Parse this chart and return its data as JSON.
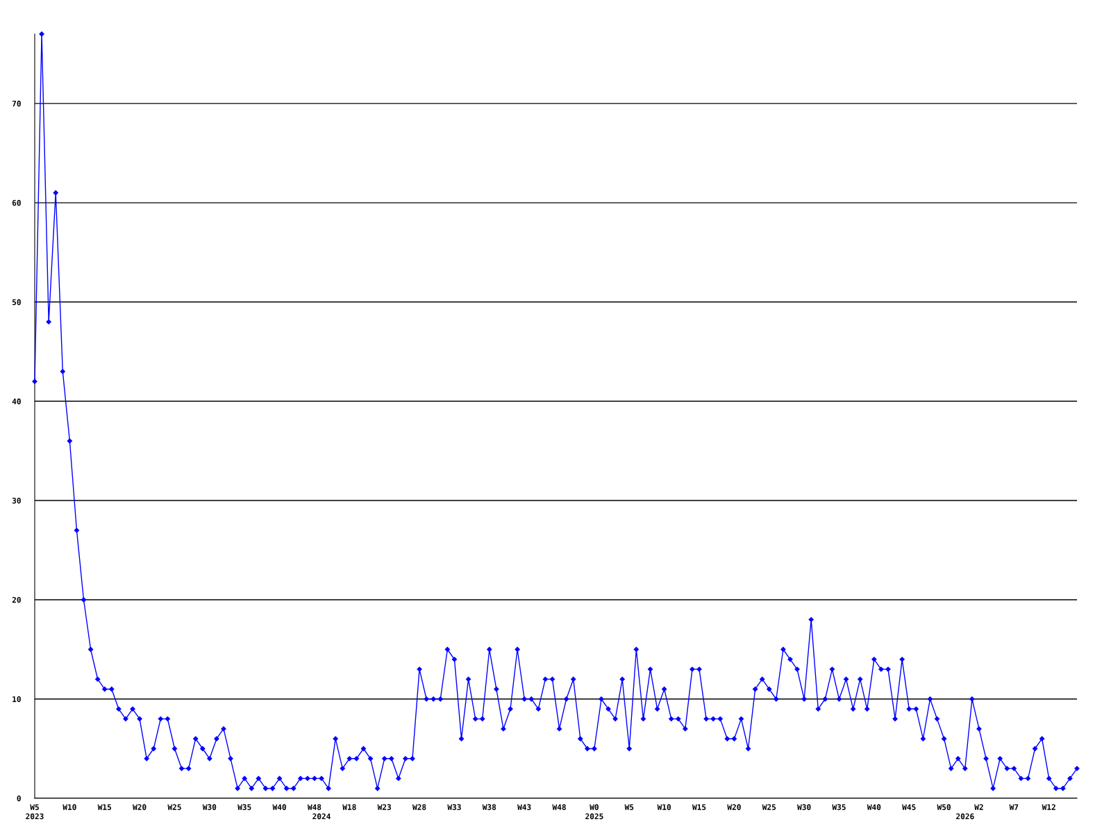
{
  "chart_data": {
    "type": "line",
    "categories": [
      "W5\n2023",
      null,
      null,
      null,
      null,
      "W10",
      null,
      null,
      null,
      null,
      "W15",
      null,
      null,
      null,
      null,
      "W20",
      null,
      null,
      null,
      null,
      "W25",
      null,
      null,
      null,
      null,
      "W30",
      null,
      null,
      null,
      null,
      "W35",
      null,
      null,
      null,
      null,
      "W40",
      null,
      null,
      null,
      null,
      "W48",
      "\n2024",
      null,
      null,
      null,
      "W18",
      null,
      null,
      null,
      null,
      "W23",
      null,
      null,
      null,
      null,
      "W28",
      null,
      null,
      null,
      null,
      "W33",
      null,
      null,
      null,
      null,
      "W38",
      null,
      null,
      null,
      null,
      "W43",
      null,
      null,
      null,
      null,
      "W48",
      null,
      null,
      null,
      null,
      "W0\n2025",
      null,
      null,
      null,
      null,
      "W5",
      null,
      null,
      null,
      null,
      "W10",
      null,
      null,
      null,
      null,
      "W15",
      null,
      null,
      null,
      null,
      "W20",
      null,
      null,
      null,
      null,
      "W25",
      null,
      null,
      null,
      null,
      "W30",
      null,
      null,
      null,
      null,
      "W35",
      null,
      null,
      null,
      null,
      "W40",
      null,
      null,
      null,
      null,
      "W45",
      null,
      null,
      null,
      null,
      "W50",
      null,
      null,
      "\n2026",
      null,
      "W2",
      null,
      null,
      null,
      null,
      "W7",
      null,
      null,
      null,
      null,
      "W12",
      null,
      null,
      null,
      null
    ],
    "series": [
      {
        "color": "#0000ff",
        "values": [
          42,
          77,
          48,
          61,
          43,
          36,
          27,
          20,
          15,
          12,
          11,
          11,
          9,
          8,
          9,
          8,
          4,
          5,
          8,
          8,
          5,
          3,
          3,
          6,
          5,
          4,
          6,
          7,
          4,
          1,
          2,
          1,
          2,
          1,
          1,
          2,
          1,
          1,
          2,
          2,
          2,
          2,
          1,
          6,
          3,
          4,
          4,
          5,
          4,
          1,
          4,
          4,
          2,
          4,
          4,
          13,
          10,
          10,
          10,
          15,
          14,
          6,
          12,
          8,
          8,
          15,
          11,
          7,
          9,
          15,
          10,
          10,
          9,
          12,
          12,
          7,
          10,
          12,
          6,
          5,
          5,
          10,
          9,
          8,
          12,
          5,
          15,
          8,
          13,
          9,
          11,
          8,
          8,
          7,
          13,
          13,
          8,
          8,
          8,
          6,
          6,
          8,
          5,
          11,
          12,
          11,
          10,
          15,
          14,
          13,
          10,
          18,
          9,
          10,
          13,
          10,
          12,
          9,
          12,
          9,
          14,
          13,
          13,
          8,
          14,
          9,
          9,
          6,
          10,
          8,
          6,
          3,
          4,
          3,
          10,
          7,
          4,
          1,
          4,
          3,
          3,
          2,
          2,
          5,
          6,
          2,
          1,
          1,
          2,
          3
        ]
      }
    ],
    "ylim": [
      0,
      77
    ],
    "yticks": [
      0,
      10,
      20,
      30,
      40,
      50,
      60,
      70
    ],
    "grid": "y",
    "marker": "diamond",
    "line_style": "solid",
    "legend": false
  }
}
